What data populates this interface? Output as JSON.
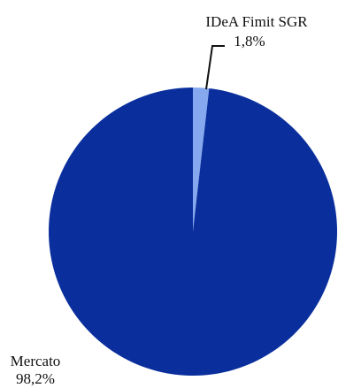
{
  "chart_data": {
    "type": "pie",
    "slices": [
      {
        "label": "IDeA Fimit SGR",
        "value": 1.8,
        "value_label": "1,8%",
        "color": "#86a8ee"
      },
      {
        "label": "Mercato",
        "value": 98.2,
        "value_label": "98,2%",
        "color": "#0a2f9c"
      }
    ],
    "start_angle_deg": 0,
    "direction": "clockwise",
    "legend": "none"
  }
}
